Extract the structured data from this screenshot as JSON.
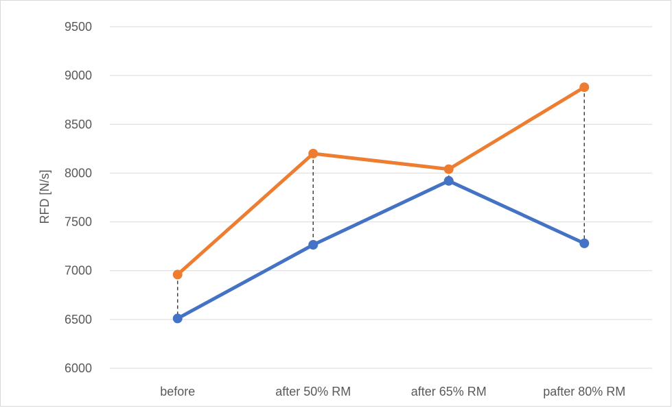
{
  "chart_data": {
    "type": "line",
    "title": "",
    "xlabel": "",
    "ylabel": "RFD [N/s]",
    "categories": [
      "before",
      "after 50% RM",
      "after 65% RM",
      "pafter 80% RM"
    ],
    "ylim": [
      6000,
      9500
    ],
    "yticks": [
      "6000",
      "6500",
      "7000",
      "7500",
      "8000",
      "8500",
      "9000",
      "9500"
    ],
    "grid": true,
    "legend": "none",
    "drop_lines": true,
    "series": [
      {
        "color": "#4472c4",
        "values": [
          6510,
          7265,
          7920,
          7280
        ]
      },
      {
        "color": "#ed7d31",
        "values": [
          6960,
          8200,
          8040,
          8880
        ]
      }
    ]
  }
}
